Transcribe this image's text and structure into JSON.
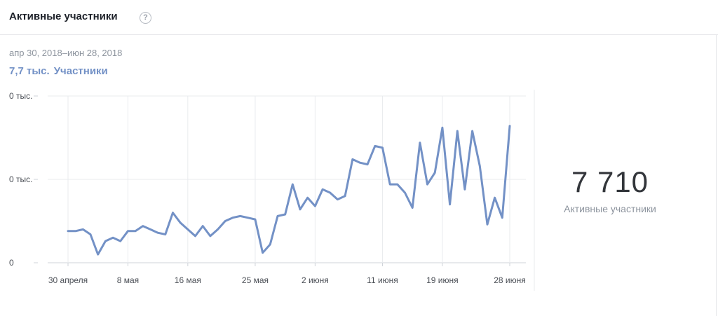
{
  "header": {
    "title": "Активные участники",
    "help_icon": "question-mark-circle-icon",
    "help_glyph": "?"
  },
  "summary": {
    "date_range": "апр 30, 2018–июн 28, 2018",
    "value": "7,7 тыс.",
    "label": "Участники"
  },
  "kpi": {
    "value": "7 710",
    "label": "Активные участники"
  },
  "colors": {
    "line": "#7391c6",
    "grid": "#e9ebee",
    "axis": "#cfd3d9",
    "text_muted": "#8d949e"
  },
  "chart_data": {
    "type": "line",
    "title": "",
    "xlabel": "",
    "ylabel": "",
    "y_tick_labels": [
      "0 тыс.",
      "0 тыс.",
      "0"
    ],
    "x_tick_labels": [
      "30 апреля",
      "8 мая",
      "16 мая",
      "25 мая",
      "2 июня",
      "11 июня",
      "19 июня",
      "28 июня"
    ],
    "x_tick_dates": [
      "2018-04-30",
      "2018-05-08",
      "2018-05-16",
      "2018-05-25",
      "2018-06-02",
      "2018-06-11",
      "2018-06-19",
      "2018-06-28"
    ],
    "grid": true,
    "ylim": [
      0,
      100
    ],
    "series": [
      {
        "x": [
          "2018-04-30",
          "2018-05-01",
          "2018-05-02",
          "2018-05-03",
          "2018-05-04",
          "2018-05-05",
          "2018-05-06",
          "2018-05-07",
          "2018-05-08",
          "2018-05-09",
          "2018-05-10",
          "2018-05-11",
          "2018-05-12",
          "2018-05-13",
          "2018-05-14",
          "2018-05-15",
          "2018-05-16",
          "2018-05-17",
          "2018-05-18",
          "2018-05-19",
          "2018-05-20",
          "2018-05-21",
          "2018-05-22",
          "2018-05-23",
          "2018-05-24",
          "2018-05-25",
          "2018-05-26",
          "2018-05-27",
          "2018-05-28",
          "2018-05-29",
          "2018-05-30",
          "2018-05-31",
          "2018-06-01",
          "2018-06-02",
          "2018-06-03",
          "2018-06-04",
          "2018-06-05",
          "2018-06-06",
          "2018-06-07",
          "2018-06-08",
          "2018-06-09",
          "2018-06-10",
          "2018-06-11",
          "2018-06-12",
          "2018-06-13",
          "2018-06-14",
          "2018-06-15",
          "2018-06-16",
          "2018-06-17",
          "2018-06-18",
          "2018-06-19",
          "2018-06-20",
          "2018-06-21",
          "2018-06-22",
          "2018-06-23",
          "2018-06-24",
          "2018-06-25",
          "2018-06-26",
          "2018-06-27",
          "2018-06-28"
        ],
        "values": [
          19,
          19,
          20,
          17,
          5,
          13,
          15,
          13,
          19,
          19,
          22,
          20,
          18,
          17,
          30,
          24,
          20,
          16,
          22,
          16,
          20,
          25,
          27,
          28,
          27,
          26,
          6,
          11,
          28,
          29,
          47,
          32,
          39,
          34,
          44,
          42,
          38,
          40,
          62,
          60,
          59,
          70,
          69,
          47,
          47,
          42,
          33,
          72,
          47,
          54,
          81,
          35,
          79,
          44,
          79,
          58,
          23,
          39,
          27,
          82
        ]
      }
    ]
  }
}
